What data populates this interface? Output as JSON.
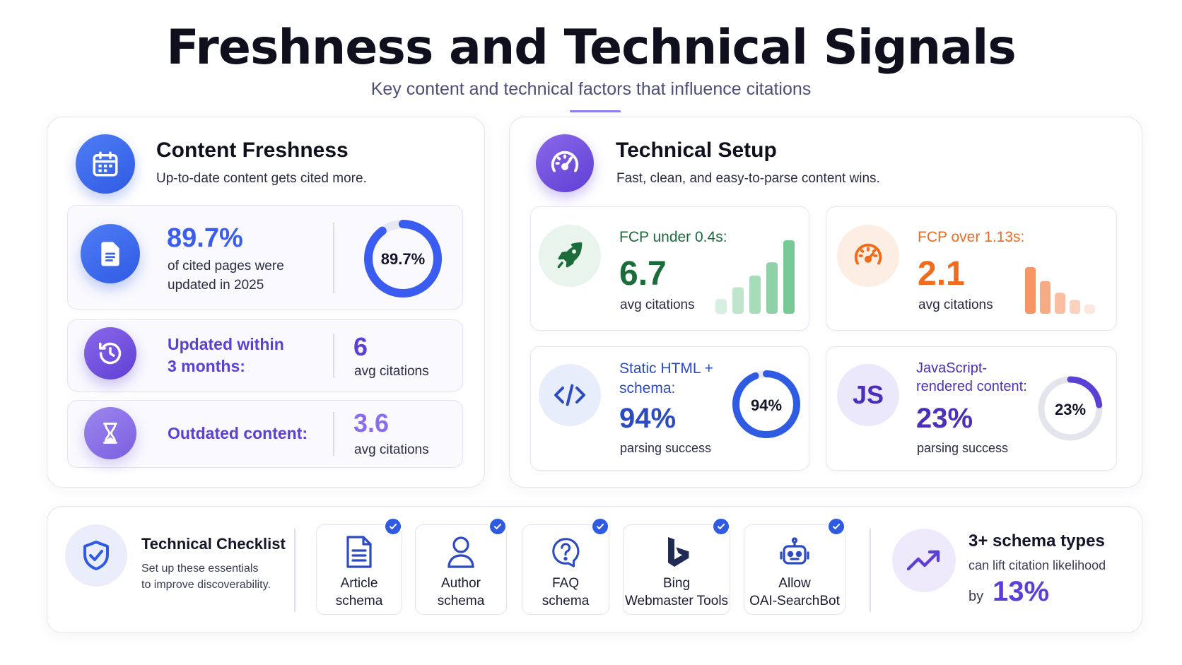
{
  "header": {
    "title": "Freshness and Technical Signals",
    "subtitle": "Key content and technical factors that influence citations"
  },
  "freshness": {
    "title": "Content Freshness",
    "subtitle": "Up-to-date content gets cited more.",
    "icon": "calendar-icon",
    "updated_2025": {
      "icon": "document-icon",
      "value": "89.7%",
      "text_line1": "of cited pages were",
      "text_line2": "updated in 2025",
      "ring_label": "89.7%",
      "ring_percent": 89.7
    },
    "within_3_months": {
      "icon": "history-icon",
      "label_line1": "Updated within",
      "label_line2": "3 months:",
      "value": "6",
      "unit": "avg citations"
    },
    "outdated": {
      "icon": "hourglass-icon",
      "label": "Outdated content:",
      "value": "3.6",
      "unit": "avg citations"
    }
  },
  "technical": {
    "title": "Technical Setup",
    "subtitle": "Fast, clean, and easy-to-parse content wins.",
    "icon": "speedometer-icon",
    "fcp_fast": {
      "icon": "rocket-icon",
      "label": "FCP under 0.4s:",
      "value": "6.7",
      "unit": "avg citations",
      "bar_levels": [
        0.2,
        0.36,
        0.52,
        0.7,
        1.0
      ],
      "color": "#1c6b3a"
    },
    "fcp_slow": {
      "icon": "gauge-icon",
      "label": "FCP over 1.13s:",
      "value": "2.1",
      "unit": "avg citations",
      "bar_levels": [
        1.0,
        0.7,
        0.45,
        0.3,
        0.2
      ],
      "color": "#f26a1b"
    },
    "static_html": {
      "icon": "code-icon",
      "label_line1": "Static HTML +",
      "label_line2": "schema:",
      "value": "94%",
      "unit": "parsing success",
      "ring_label": "94%",
      "ring_percent": 94
    },
    "js_rendered": {
      "icon": "js-icon",
      "icon_text": "JS",
      "label_line1": "JavaScript-",
      "label_line2": "rendered content:",
      "value": "23%",
      "unit": "parsing success",
      "ring_label": "23%",
      "ring_percent": 23
    }
  },
  "checklist": {
    "icon": "shield-check-icon",
    "title": "Technical Checklist",
    "desc_line1": "Set up these essentials",
    "desc_line2": "to improve discoverability.",
    "items": [
      {
        "icon": "article-icon",
        "line1": "Article",
        "line2": "schema"
      },
      {
        "icon": "author-icon",
        "line1": "Author",
        "line2": "schema"
      },
      {
        "icon": "faq-icon",
        "line1": "FAQ",
        "line2": "schema"
      },
      {
        "icon": "bing-icon",
        "line1": "Bing",
        "line2": "Webmaster Tools"
      },
      {
        "icon": "robot-icon",
        "line1": "Allow",
        "line2": "OAI-SearchBot"
      }
    ],
    "stat": {
      "icon": "trend-up-icon",
      "title": "3+ schema types",
      "line1": "can lift citation likelihood",
      "prefix": "by",
      "value": "13%"
    }
  }
}
